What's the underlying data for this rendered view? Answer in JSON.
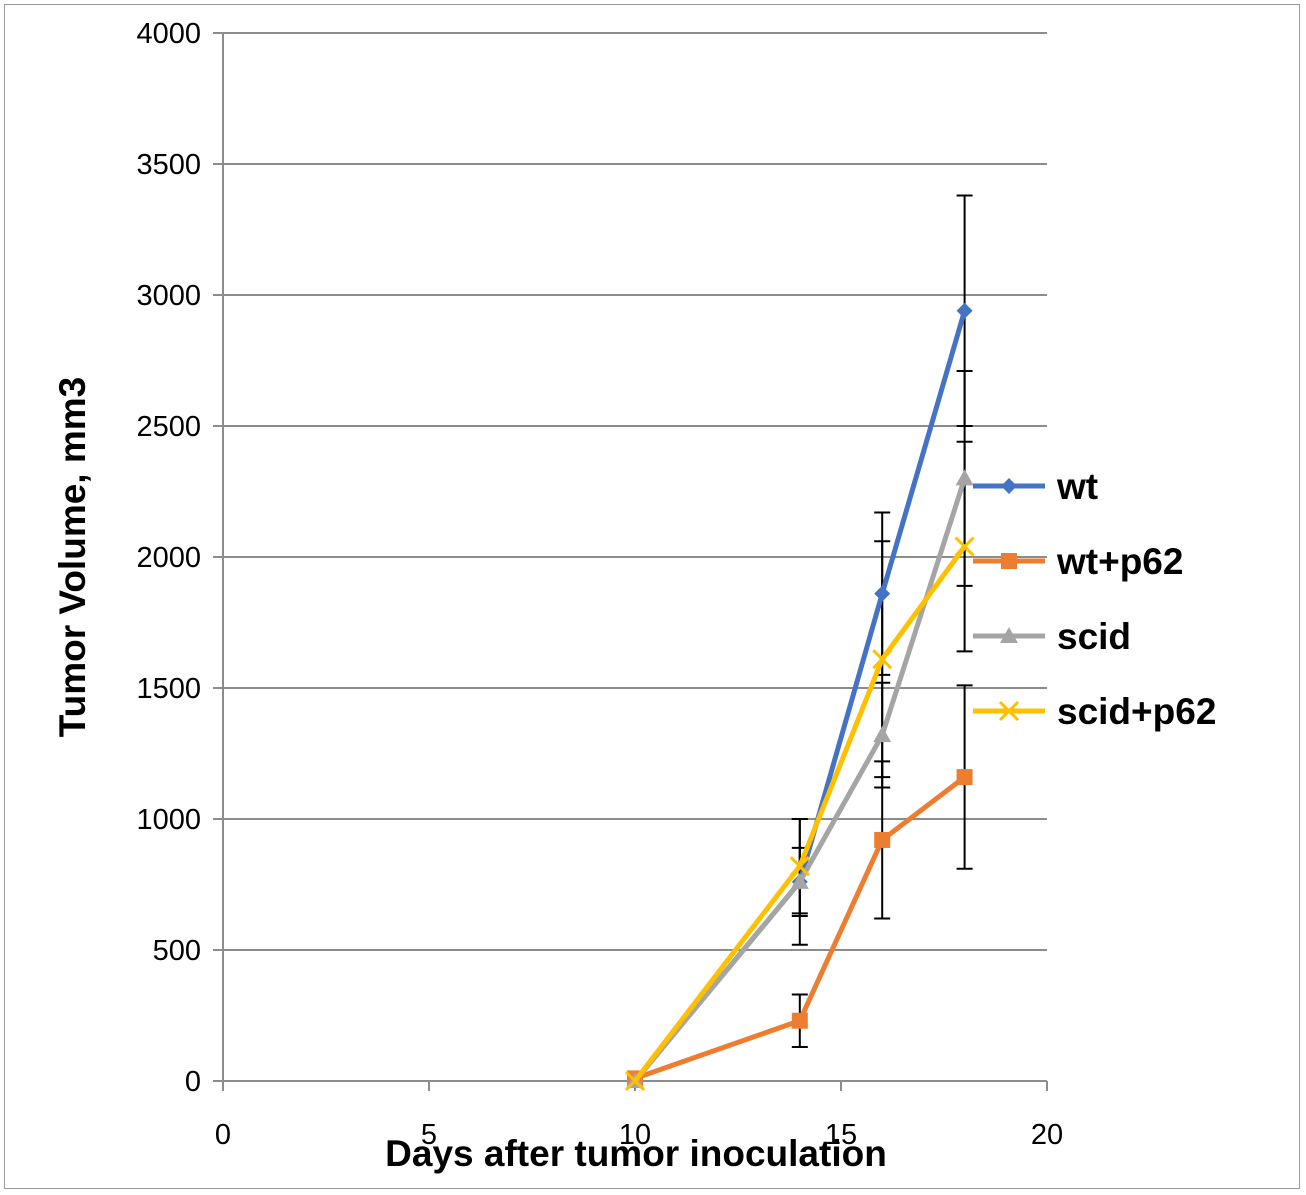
{
  "chart_data": {
    "type": "line",
    "xlabel": "Days after tumor inoculation",
    "ylabel": "Tumor Volume, mm3",
    "xlim": [
      0,
      20
    ],
    "ylim": [
      0,
      4000
    ],
    "xticks": [
      "0",
      "5",
      "10",
      "15",
      "20"
    ],
    "yticks": [
      "0",
      "500",
      "1000",
      "1500",
      "2000",
      "2500",
      "3000",
      "3500",
      "4000"
    ],
    "grid": "horizontal",
    "legend_position": "right",
    "series": [
      {
        "name": "wt",
        "color": "#4472C4",
        "marker": "diamond",
        "points": [
          {
            "x": 10,
            "y": 0
          },
          {
            "x": 14,
            "y": 760,
            "err": 240
          },
          {
            "x": 16,
            "y": 1860,
            "err": 310
          },
          {
            "x": 18,
            "y": 2940,
            "err": 440
          }
        ]
      },
      {
        "name": "wt+p62",
        "color": "#ED7D31",
        "marker": "square",
        "points": [
          {
            "x": 10,
            "y": 10
          },
          {
            "x": 14,
            "y": 230,
            "err": 100
          },
          {
            "x": 16,
            "y": 920,
            "err": 300
          },
          {
            "x": 18,
            "y": 1160,
            "err": 350
          }
        ]
      },
      {
        "name": "scid",
        "color": "#A5A5A5",
        "marker": "triangle",
        "points": [
          {
            "x": 10,
            "y": 0
          },
          {
            "x": 14,
            "y": 760,
            "err": 130
          },
          {
            "x": 16,
            "y": 1320,
            "err": 200
          },
          {
            "x": 18,
            "y": 2300,
            "err": 410
          }
        ]
      },
      {
        "name": "scid+p62",
        "color": "#FFC000",
        "marker": "x",
        "points": [
          {
            "x": 10,
            "y": 0
          },
          {
            "x": 14,
            "y": 820,
            "err": 180
          },
          {
            "x": 16,
            "y": 1610,
            "err": 450
          },
          {
            "x": 18,
            "y": 2040,
            "err": 400
          }
        ]
      }
    ]
  }
}
